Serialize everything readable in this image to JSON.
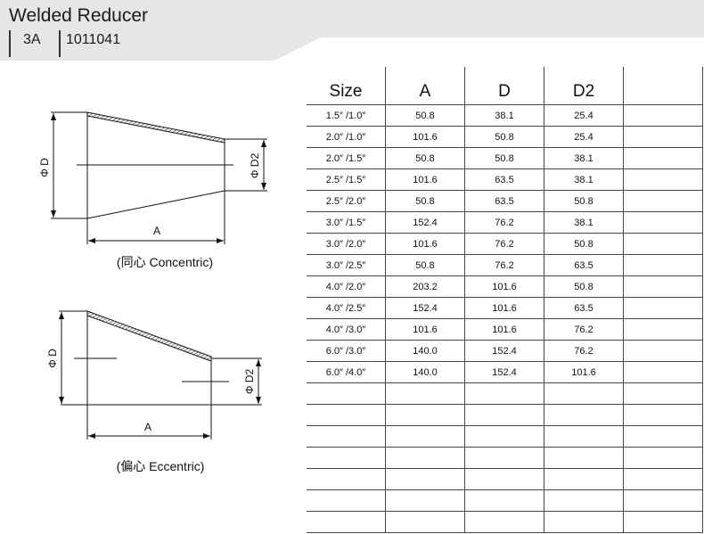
{
  "header": {
    "title": "Welded Reducer",
    "standard": "3A",
    "code": "1011041",
    "band_color": "#e6e6e6"
  },
  "drawings": {
    "concentric": {
      "label_d": "Φ D",
      "label_d2": "Φ D2",
      "label_a": "A",
      "caption": "(同心 Concentric)"
    },
    "eccentric": {
      "label_d": "Φ D",
      "label_d2": "Φ D2",
      "label_a": "A",
      "caption": "(偏心 Eccentric)"
    }
  },
  "table": {
    "headers": [
      "Size",
      "A",
      "D",
      "D2",
      ""
    ],
    "rows": [
      [
        "1.5″  /1.0″",
        "50.8",
        "38.1",
        "25.4",
        ""
      ],
      [
        "2.0″  /1.0″",
        "101.6",
        "50.8",
        "25.4",
        ""
      ],
      [
        "2.0″  /1.5″",
        "50.8",
        "50.8",
        "38.1",
        ""
      ],
      [
        "2.5″  /1.5″",
        "101.6",
        "63.5",
        "38.1",
        ""
      ],
      [
        "2.5″  /2.0″",
        "50.8",
        "63.5",
        "50.8",
        ""
      ],
      [
        "3.0″  /1.5″",
        "152.4",
        "76.2",
        "38.1",
        ""
      ],
      [
        "3.0″  /2.0″",
        "101.6",
        "76.2",
        "50.8",
        ""
      ],
      [
        "3.0″  /2.5″",
        "50.8",
        "76.2",
        "63.5",
        ""
      ],
      [
        "4.0″  /2.0″",
        "203.2",
        "101.6",
        "50.8",
        ""
      ],
      [
        "4.0″  /2.5″",
        "152.4",
        "101.6",
        "63.5",
        ""
      ],
      [
        "4.0″  /3.0″",
        "101.6",
        "101.6",
        "76.2",
        ""
      ],
      [
        "6.0″  /3.0″",
        "140.0",
        "152.4",
        "76.2",
        ""
      ],
      [
        "6.0″  /4.0″",
        "140.0",
        "152.4",
        "101.6",
        ""
      ],
      [
        "",
        "",
        "",
        "",
        ""
      ],
      [
        "",
        "",
        "",
        "",
        ""
      ],
      [
        "",
        "",
        "",
        "",
        ""
      ],
      [
        "",
        "",
        "",
        "",
        ""
      ],
      [
        "",
        "",
        "",
        "",
        ""
      ],
      [
        "",
        "",
        "",
        "",
        ""
      ],
      [
        "",
        "",
        "",
        "",
        ""
      ]
    ]
  }
}
